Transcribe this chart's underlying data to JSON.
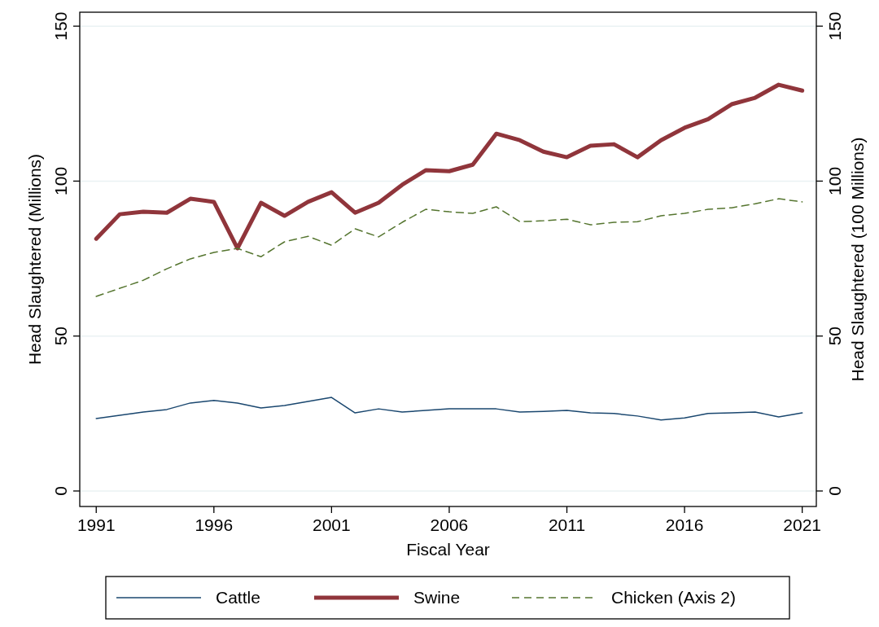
{
  "chart_data": {
    "type": "line",
    "xlabel": "Fiscal Year",
    "ylabel": "Head Slaughtered (Millions)",
    "y2label": "Head Slaughtered (100 Millions)",
    "x": [
      1991,
      1992,
      1993,
      1994,
      1995,
      1996,
      1997,
      1998,
      1999,
      2000,
      2001,
      2002,
      2003,
      2004,
      2005,
      2006,
      2007,
      2008,
      2009,
      2010,
      2011,
      2012,
      2013,
      2014,
      2015,
      2016,
      2017,
      2018,
      2019,
      2020,
      2021
    ],
    "xlim": [
      1990.3,
      2021.6
    ],
    "xticks": [
      1991,
      1996,
      2001,
      2006,
      2011,
      2016,
      2021
    ],
    "ylim": [
      -5,
      154.5
    ],
    "yticks": [
      0,
      50,
      100,
      150
    ],
    "y2lim": [
      -5,
      154.5
    ],
    "y2ticks": [
      0,
      50,
      100,
      150
    ],
    "grid": "y",
    "legend": "bottom",
    "marker": "none",
    "series": [
      {
        "name": "Cattle",
        "color": "#1a476f",
        "line_style": "solid",
        "values": [
          23.4,
          24.4,
          25.5,
          26.3,
          28.4,
          29.2,
          28.4,
          26.8,
          27.6,
          28.9,
          30.2,
          25.2,
          26.5,
          25.5,
          26,
          26.5,
          26.5,
          26.5,
          25.5,
          25.7,
          26,
          25.2,
          25,
          24.2,
          22.9,
          23.6,
          25,
          25.2,
          25.5,
          23.9,
          25.2
        ]
      },
      {
        "name": "Swine",
        "color": "#90353b",
        "line_style": "solid",
        "values": [
          81.4,
          89.3,
          90.1,
          89.8,
          94.3,
          93.3,
          78.3,
          93,
          88.8,
          93.3,
          96.4,
          89.8,
          93,
          98.8,
          103.5,
          103.2,
          105.3,
          115.3,
          113.2,
          109.5,
          107.7,
          111.4,
          111.9,
          107.7,
          113.2,
          117.2,
          120,
          124.8,
          126.9,
          131.1,
          129.2
        ]
      },
      {
        "name": "Chicken (Axis 2)",
        "color": "#55752f",
        "line_style": "dashed",
        "axis": "y2",
        "values": [
          62.8,
          65.4,
          68,
          71.7,
          74.9,
          77,
          78.3,
          75.6,
          80.4,
          82.2,
          79.3,
          84.6,
          82,
          86.7,
          90.9,
          90.1,
          89.6,
          91.7,
          86.9,
          87.2,
          87.7,
          85.9,
          86.7,
          86.9,
          88.8,
          89.6,
          90.9,
          91.4,
          92.7,
          94.3,
          93.3
        ]
      }
    ]
  }
}
